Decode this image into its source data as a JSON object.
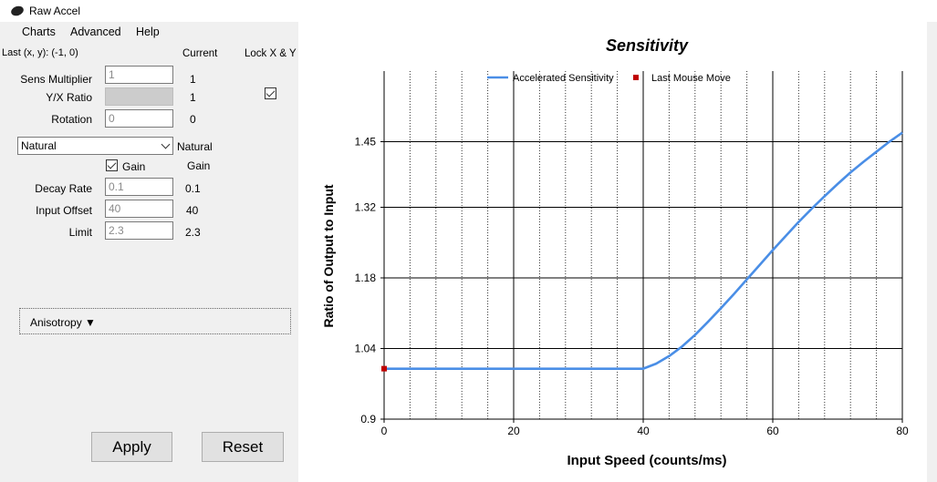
{
  "window": {
    "title": "Raw Accel"
  },
  "menu": {
    "items": [
      "Charts",
      "Advanced",
      "Help"
    ]
  },
  "panel": {
    "last_xy": "Last (x, y): (-1, 0)",
    "current_header": "Current",
    "lock_label": "Lock X & Y",
    "sens_multiplier": {
      "label": "Sens Multiplier",
      "value": "1",
      "current": "1"
    },
    "yx_ratio": {
      "label": "Y/X Ratio",
      "value": "",
      "current": "1"
    },
    "rotation": {
      "label": "Rotation",
      "value": "0",
      "current": "0"
    },
    "accel_type": {
      "selected": "Natural",
      "current": "Natural"
    },
    "gain": {
      "label": "Gain",
      "current": "Gain"
    },
    "decay_rate": {
      "label": "Decay Rate",
      "value": "0.1",
      "current": "0.1"
    },
    "input_offset": {
      "label": "Input Offset",
      "value": "40",
      "current": "40"
    },
    "limit": {
      "label": "Limit",
      "value": "2.3",
      "current": "2.3"
    },
    "anisotropy_label": "Anisotropy ▼",
    "apply_label": "Apply",
    "reset_label": "Reset"
  },
  "chart_data": {
    "type": "line",
    "title": "Sensitivity",
    "xlabel": "Input Speed (counts/ms)",
    "ylabel": "Ratio of Output to Input",
    "xlim": [
      0,
      80
    ],
    "ylim": [
      0.9,
      1.59
    ],
    "xticks": [
      0,
      20,
      40,
      60,
      80
    ],
    "yticks": [
      "0.9",
      "1.04",
      "1.18",
      "1.32",
      "1.45"
    ],
    "grid": true,
    "legend": "top-center",
    "series": [
      {
        "name": "Accelerated Sensitivity",
        "color": "#4a8ee6",
        "x": [
          0,
          40,
          42,
          44,
          46,
          48,
          50,
          52,
          54,
          56,
          58,
          60,
          62,
          64,
          66,
          68,
          70,
          72,
          74,
          76,
          78,
          80
        ],
        "y": [
          1.0,
          1.0,
          1.01,
          1.025,
          1.044,
          1.067,
          1.093,
          1.12,
          1.148,
          1.177,
          1.206,
          1.235,
          1.263,
          1.291,
          1.317,
          1.342,
          1.366,
          1.389,
          1.41,
          1.43,
          1.45,
          1.468
        ]
      },
      {
        "name": "Last Mouse Move",
        "color": "#c00000",
        "x": [
          0
        ],
        "y": [
          1.0
        ]
      }
    ]
  }
}
